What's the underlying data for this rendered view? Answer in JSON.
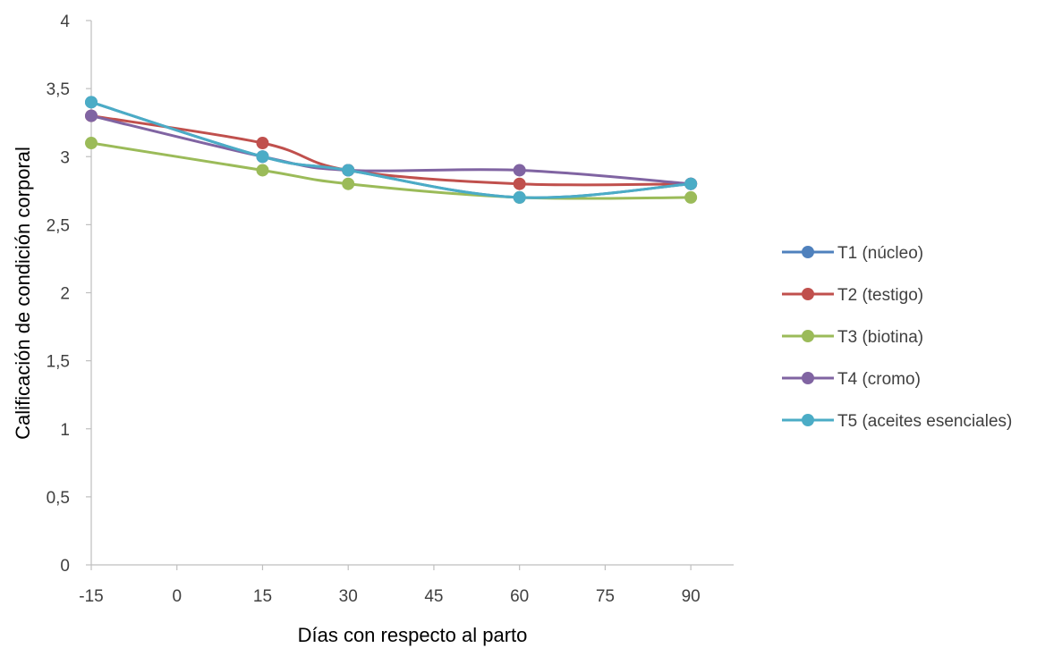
{
  "chart_data": {
    "type": "line",
    "title": "",
    "xlabel": "Días con respecto al parto",
    "ylabel": "Calificación de condición corporal",
    "xlim": [
      -15,
      97.5
    ],
    "ylim": [
      0,
      4
    ],
    "xticks": [
      -15,
      0,
      15,
      30,
      45,
      60,
      75,
      90
    ],
    "xtick_labels": [
      "-15",
      "0",
      "15",
      "30",
      "45",
      "60",
      "75",
      "90"
    ],
    "yticks": [
      0,
      0.5,
      1,
      1.5,
      2,
      2.5,
      3,
      3.5,
      4
    ],
    "ytick_labels": [
      "0",
      "0,5",
      "1",
      "1,5",
      "2",
      "2,5",
      "3",
      "3,5",
      "4"
    ],
    "grid": false,
    "legend_position": "right",
    "x": [
      -15,
      15,
      30,
      60,
      90
    ],
    "series": [
      {
        "name": "T1 (núcleo)",
        "color": "#4f81bd",
        "values": [
          3.4,
          3.0,
          2.9,
          2.7,
          2.8
        ]
      },
      {
        "name": "T2 (testigo)",
        "color": "#c0504d",
        "values": [
          3.3,
          3.1,
          2.9,
          2.8,
          2.8
        ]
      },
      {
        "name": "T3 (biotina)",
        "color": "#9bbb59",
        "values": [
          3.1,
          2.9,
          2.8,
          2.7,
          2.7
        ]
      },
      {
        "name": "T4 (cromo)",
        "color": "#8064a2",
        "values": [
          3.3,
          3.0,
          2.9,
          2.9,
          2.8
        ]
      },
      {
        "name": "T5 (aceites esenciales)",
        "color": "#4bacc6",
        "values": [
          3.4,
          3.0,
          2.9,
          2.7,
          2.8
        ]
      }
    ]
  }
}
